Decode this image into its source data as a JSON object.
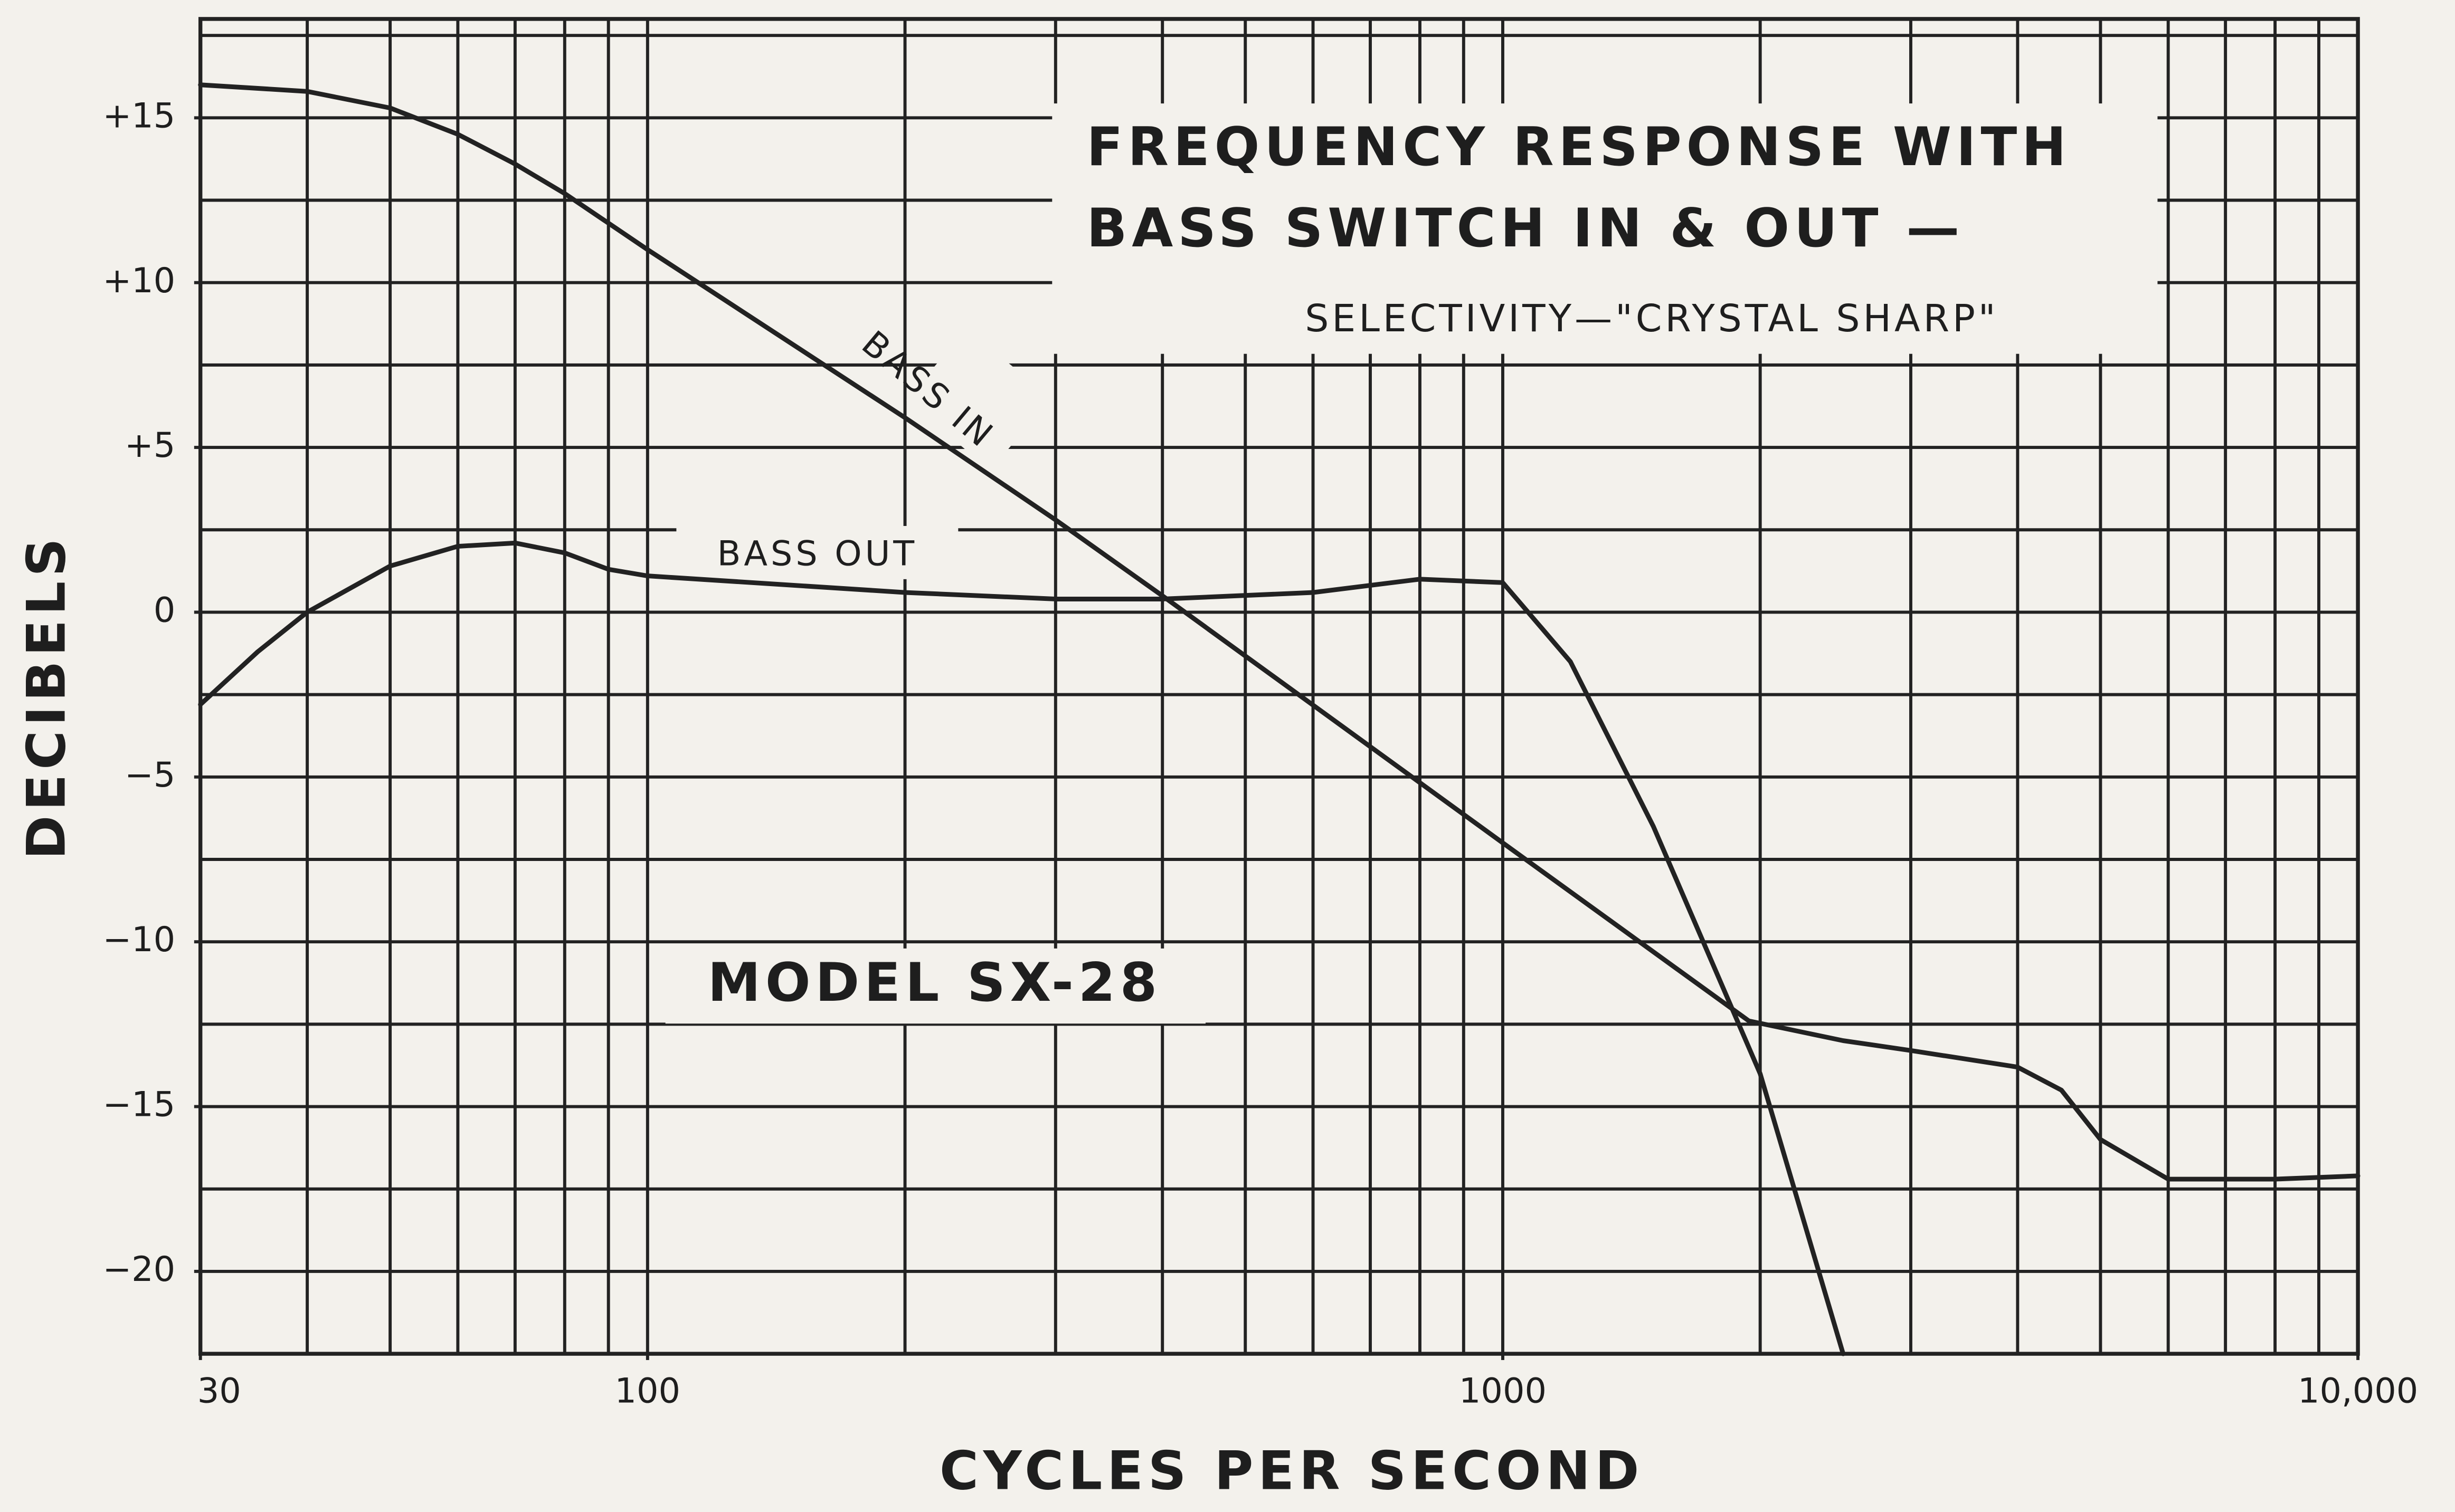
{
  "chart_data": {
    "type": "line",
    "title": "FREQUENCY RESPONSE WITH",
    "title_line2": "BASS SWITCH IN & OUT —",
    "subtitle": "SELECTIVITY—\"CRYSTAL SHARP\"",
    "annotation": "MODEL SX-28",
    "xlabel": "CYCLES PER SECOND",
    "ylabel": "DECIBELS",
    "log_x": true,
    "grid": true,
    "xlim": [
      30,
      10000
    ],
    "ylim": [
      -22.5,
      18
    ],
    "xticks": [
      30,
      100,
      1000,
      {
        "value": 10000,
        "label": "10,000"
      }
    ],
    "yticks": [
      {
        "value": 15,
        "label": "+15"
      },
      {
        "value": 10,
        "label": "+10"
      },
      {
        "value": 5,
        "label": "+5"
      },
      0,
      {
        "value": -5,
        "label": "−5"
      },
      {
        "value": -10,
        "label": "−10"
      },
      {
        "value": -15,
        "label": "−15"
      },
      {
        "value": -20,
        "label": "−20"
      }
    ],
    "xgrid": [
      30,
      40,
      50,
      60,
      70,
      80,
      90,
      100,
      200,
      300,
      400,
      500,
      600,
      700,
      800,
      900,
      1000,
      2000,
      3000,
      4000,
      5000,
      6000,
      7000,
      8000,
      9000,
      10000
    ],
    "ygrid": [
      17.5,
      15,
      12.5,
      10,
      7.5,
      5,
      2.5,
      0,
      -2.5,
      -5,
      -7.5,
      -10,
      -12.5,
      -15,
      -17.5,
      -20,
      -22.5
    ],
    "series": [
      {
        "name": "BASS IN",
        "color": "#222222",
        "x": [
          30,
          40,
          50,
          60,
          70,
          80,
          100,
          200,
          300,
          400,
          1000,
          1940,
          2500,
          3000,
          4000,
          4500,
          5000,
          6000,
          8000,
          10000
        ],
        "values": [
          16,
          15.8,
          15.3,
          14.5,
          13.6,
          12.7,
          11,
          5.9,
          2.8,
          0.5,
          -7,
          -12.4,
          -13,
          -13.3,
          -13.8,
          -14.5,
          -16,
          -17.2,
          -17.2,
          -17.1
        ]
      },
      {
        "name": "BASS OUT",
        "color": "#222222",
        "x": [
          30,
          35,
          40,
          50,
          60,
          70,
          80,
          90,
          100,
          200,
          300,
          400,
          600,
          800,
          1000,
          1200,
          1500,
          2000,
          2500
        ],
        "values": [
          -2.8,
          -1.2,
          0,
          1.4,
          2,
          2.1,
          1.8,
          1.3,
          1.1,
          0.6,
          0.4,
          0.4,
          0.6,
          1,
          0.9,
          -1.5,
          -6.5,
          -14,
          -22.5
        ]
      }
    ]
  }
}
